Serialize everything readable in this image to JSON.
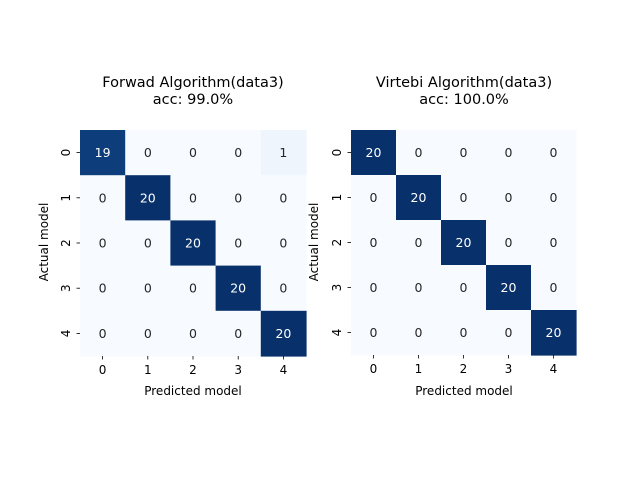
{
  "chart_data": [
    {
      "type": "heatmap",
      "title": "Forwad Algorithm(data3)",
      "subtitle": "acc: 99.0%",
      "xlabel": "Predicted model",
      "ylabel": "Actual model",
      "x_ticks": [
        "0",
        "1",
        "2",
        "3",
        "4"
      ],
      "y_ticks": [
        "0",
        "1",
        "2",
        "3",
        "4"
      ],
      "vmin": 0,
      "vmax": 20,
      "colormap": "Blues",
      "matrix": [
        [
          19,
          0,
          0,
          0,
          1
        ],
        [
          0,
          20,
          0,
          0,
          0
        ],
        [
          0,
          0,
          20,
          0,
          0
        ],
        [
          0,
          0,
          0,
          20,
          0
        ],
        [
          0,
          0,
          0,
          0,
          20
        ]
      ]
    },
    {
      "type": "heatmap",
      "title": "Virtebi Algorithm(data3)",
      "subtitle": "acc: 100.0%",
      "xlabel": "Predicted model",
      "ylabel": "Actual model",
      "x_ticks": [
        "0",
        "1",
        "2",
        "3",
        "4"
      ],
      "y_ticks": [
        "0",
        "1",
        "2",
        "3",
        "4"
      ],
      "vmin": 0,
      "vmax": 20,
      "colormap": "Blues",
      "matrix": [
        [
          20,
          0,
          0,
          0,
          0
        ],
        [
          0,
          20,
          0,
          0,
          0
        ],
        [
          0,
          0,
          20,
          0,
          0
        ],
        [
          0,
          0,
          0,
          20,
          0
        ],
        [
          0,
          0,
          0,
          0,
          20
        ]
      ]
    }
  ],
  "colors": {
    "low": "#f7fbff",
    "high": "#08306b",
    "text_dark": "#262626",
    "text_light": "#ffffff"
  }
}
